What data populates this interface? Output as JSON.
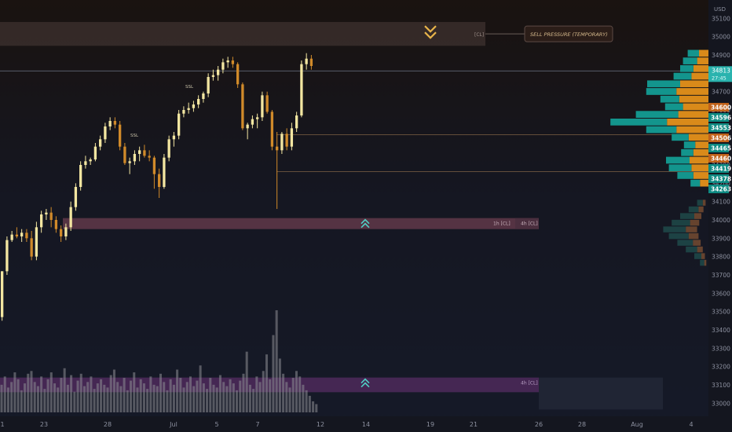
{
  "chart_data": {
    "type": "candlestick",
    "y_unit_label": "USD",
    "ylim": [
      32950,
      35200
    ],
    "y_ticks": [
      33000,
      33100,
      33200,
      33300,
      33400,
      33500,
      33600,
      33700,
      33800,
      33900,
      34000,
      34100,
      34200,
      34300,
      34400,
      34500,
      34600,
      34700,
      34800,
      34900,
      35000,
      35100
    ],
    "x_labels": [
      "1",
      "23",
      "28",
      "Jul",
      "5",
      "7",
      "12",
      "14",
      "19",
      "21",
      "26",
      "28",
      "Aug",
      "4"
    ],
    "candles": [
      {
        "o": 33470,
        "h": 33720,
        "l": 33450,
        "c": 33720
      },
      {
        "o": 33720,
        "h": 33910,
        "l": 33700,
        "c": 33890
      },
      {
        "o": 33890,
        "h": 33940,
        "l": 33880,
        "c": 33920
      },
      {
        "o": 33920,
        "h": 33960,
        "l": 33900,
        "c": 33910
      },
      {
        "o": 33910,
        "h": 33950,
        "l": 33880,
        "c": 33930
      },
      {
        "o": 33930,
        "h": 33950,
        "l": 33880,
        "c": 33900
      },
      {
        "o": 33900,
        "h": 33940,
        "l": 33780,
        "c": 33800
      },
      {
        "o": 33800,
        "h": 33990,
        "l": 33780,
        "c": 33960
      },
      {
        "o": 33960,
        "h": 34050,
        "l": 33930,
        "c": 34030
      },
      {
        "o": 34030,
        "h": 34060,
        "l": 34000,
        "c": 34040
      },
      {
        "o": 34040,
        "h": 34070,
        "l": 33960,
        "c": 34000
      },
      {
        "o": 34000,
        "h": 34020,
        "l": 33930,
        "c": 33950
      },
      {
        "o": 33950,
        "h": 33970,
        "l": 33880,
        "c": 33910
      },
      {
        "o": 33910,
        "h": 33980,
        "l": 33890,
        "c": 33960
      },
      {
        "o": 33960,
        "h": 34100,
        "l": 33940,
        "c": 34070
      },
      {
        "o": 34070,
        "h": 34200,
        "l": 34050,
        "c": 34180
      },
      {
        "o": 34180,
        "h": 34320,
        "l": 34160,
        "c": 34300
      },
      {
        "o": 34300,
        "h": 34350,
        "l": 34280,
        "c": 34320
      },
      {
        "o": 34320,
        "h": 34340,
        "l": 34300,
        "c": 34330
      },
      {
        "o": 34330,
        "h": 34420,
        "l": 34320,
        "c": 34400
      },
      {
        "o": 34400,
        "h": 34460,
        "l": 34380,
        "c": 34440
      },
      {
        "o": 34440,
        "h": 34530,
        "l": 34420,
        "c": 34510
      },
      {
        "o": 34510,
        "h": 34560,
        "l": 34490,
        "c": 34540
      },
      {
        "o": 34540,
        "h": 34560,
        "l": 34500,
        "c": 34520
      },
      {
        "o": 34520,
        "h": 34540,
        "l": 34380,
        "c": 34400
      },
      {
        "o": 34400,
        "h": 34420,
        "l": 34300,
        "c": 34310
      },
      {
        "o": 34310,
        "h": 34340,
        "l": 34250,
        "c": 34320
      },
      {
        "o": 34320,
        "h": 34380,
        "l": 34300,
        "c": 34360
      },
      {
        "o": 34360,
        "h": 34400,
        "l": 34320,
        "c": 34380
      },
      {
        "o": 34380,
        "h": 34410,
        "l": 34340,
        "c": 34350
      },
      {
        "o": 34350,
        "h": 34380,
        "l": 34320,
        "c": 34340
      },
      {
        "o": 34340,
        "h": 34350,
        "l": 34170,
        "c": 34250
      },
      {
        "o": 34250,
        "h": 34280,
        "l": 34120,
        "c": 34180
      },
      {
        "o": 34180,
        "h": 34360,
        "l": 34170,
        "c": 34340
      },
      {
        "o": 34340,
        "h": 34460,
        "l": 34320,
        "c": 34440
      },
      {
        "o": 34440,
        "h": 34480,
        "l": 34400,
        "c": 34460
      },
      {
        "o": 34460,
        "h": 34600,
        "l": 34440,
        "c": 34580
      },
      {
        "o": 34580,
        "h": 34620,
        "l": 34560,
        "c": 34600
      },
      {
        "o": 34600,
        "h": 34640,
        "l": 34580,
        "c": 34610
      },
      {
        "o": 34610,
        "h": 34650,
        "l": 34590,
        "c": 34630
      },
      {
        "o": 34630,
        "h": 34680,
        "l": 34610,
        "c": 34660
      },
      {
        "o": 34660,
        "h": 34700,
        "l": 34640,
        "c": 34690
      },
      {
        "o": 34690,
        "h": 34800,
        "l": 34670,
        "c": 34780
      },
      {
        "o": 34780,
        "h": 34820,
        "l": 34760,
        "c": 34790
      },
      {
        "o": 34790,
        "h": 34840,
        "l": 34760,
        "c": 34820
      },
      {
        "o": 34820,
        "h": 34880,
        "l": 34800,
        "c": 34860
      },
      {
        "o": 34860,
        "h": 34890,
        "l": 34830,
        "c": 34870
      },
      {
        "o": 34870,
        "h": 34890,
        "l": 34830,
        "c": 34850
      },
      {
        "o": 34850,
        "h": 34860,
        "l": 34720,
        "c": 34740
      },
      {
        "o": 34740,
        "h": 34750,
        "l": 34490,
        "c": 34500
      },
      {
        "o": 34500,
        "h": 34530,
        "l": 34440,
        "c": 34520
      },
      {
        "o": 34520,
        "h": 34570,
        "l": 34500,
        "c": 34550
      },
      {
        "o": 34550,
        "h": 34580,
        "l": 34500,
        "c": 34560
      },
      {
        "o": 34560,
        "h": 34700,
        "l": 34540,
        "c": 34680
      },
      {
        "o": 34680,
        "h": 34700,
        "l": 34580,
        "c": 34590
      },
      {
        "o": 34590,
        "h": 34600,
        "l": 34380,
        "c": 34400
      },
      {
        "o": 34400,
        "h": 34480,
        "l": 34060,
        "c": 34380
      },
      {
        "o": 34380,
        "h": 34480,
        "l": 34360,
        "c": 34470
      },
      {
        "o": 34470,
        "h": 34500,
        "l": 34380,
        "c": 34400
      },
      {
        "o": 34400,
        "h": 34530,
        "l": 34380,
        "c": 34500
      },
      {
        "o": 34500,
        "h": 34590,
        "l": 34480,
        "c": 34570
      },
      {
        "o": 34570,
        "h": 34870,
        "l": 34560,
        "c": 34850
      },
      {
        "o": 34850,
        "h": 34910,
        "l": 34820,
        "c": 34880
      },
      {
        "o": 34880,
        "h": 34900,
        "l": 34820,
        "c": 34840
      }
    ],
    "volume_values": [
      2.0,
      2.6,
      1.8,
      2.2,
      2.9,
      2.4,
      1.6,
      2.1,
      2.8,
      3.0,
      2.2,
      1.9,
      2.6,
      1.7,
      2.4,
      2.9,
      2.1,
      1.8,
      2.5,
      3.2,
      2.0,
      2.7,
      1.5,
      2.3,
      2.8,
      1.9,
      2.2,
      2.6,
      1.7,
      2.1,
      2.4,
      2.0,
      1.8,
      2.7,
      3.1,
      2.2,
      1.9,
      2.5,
      1.6,
      2.3,
      2.9,
      1.8,
      2.4,
      2.1,
      1.7,
      2.6,
      2.0,
      1.9,
      2.8,
      2.2,
      1.6,
      2.4,
      2.0,
      3.1,
      2.5,
      1.8,
      2.2,
      2.6,
      1.9,
      2.3,
      3.4,
      2.1,
      1.7,
      2.5,
      2.0,
      1.8,
      2.7,
      2.2,
      1.9,
      2.4,
      2.1,
      1.6,
      2.3,
      2.8,
      4.4,
      2.0,
      1.7,
      2.6,
      2.2,
      3.0,
      4.2,
      2.4,
      5.6,
      7.4,
      3.9,
      2.8,
      2.2,
      1.8,
      2.5,
      3.0,
      2.6,
      2.0,
      1.6,
      1.2,
      0.8,
      0.6
    ],
    "volume_profile_rows": [
      {
        "teal": 1.2,
        "orange": 1.0
      },
      {
        "teal": 1.5,
        "orange": 1.2
      },
      {
        "teal": 1.4,
        "orange": 1.6
      },
      {
        "teal": 1.9,
        "orange": 1.8
      },
      {
        "teal": 3.5,
        "orange": 3.0
      },
      {
        "teal": 3.2,
        "orange": 3.4
      },
      {
        "teal": 2.0,
        "orange": 3.1
      },
      {
        "teal": 1.9,
        "orange": 2.7
      },
      {
        "teal": 4.5,
        "orange": 3.2
      },
      {
        "teal": 6.0,
        "orange": 4.4
      },
      {
        "teal": 3.2,
        "orange": 3.4
      },
      {
        "teal": 1.8,
        "orange": 2.1
      },
      {
        "teal": 1.2,
        "orange": 1.4
      },
      {
        "teal": 1.3,
        "orange": 1.6
      },
      {
        "teal": 2.5,
        "orange": 2.0
      },
      {
        "teal": 2.4,
        "orange": 1.8
      },
      {
        "teal": 1.7,
        "orange": 1.6
      },
      {
        "teal": 1.0,
        "orange": 0.9
      }
    ],
    "zones": [
      {
        "label": "[CL]",
        "arrow": "down",
        "top": 35080,
        "bottom": 34950
      },
      {
        "label_left": "1h [CL]",
        "label_right": "4h [CL]",
        "arrow": "up",
        "top": 34010,
        "bottom": 33950
      },
      {
        "label_right": "4h [CL]",
        "arrow": "up",
        "top": 33140,
        "bottom": 33060
      }
    ],
    "annotation": "SELL PRESSURE (TEMPORARY)",
    "current_price": {
      "value": 34813,
      "sublabel": "27:45"
    },
    "h_lines": [
      34813,
      34465,
      34263
    ],
    "price_levels": [
      {
        "value": 34600,
        "color": "#c0621a"
      },
      {
        "value": 34596,
        "color": "#0e8a82"
      },
      {
        "value": 34553,
        "color": "#0e8a82"
      },
      {
        "value": 34506,
        "color": "#c0621a"
      },
      {
        "value": 34465,
        "color": "#0e8a82"
      },
      {
        "value": 34460,
        "color": "#c0621a"
      },
      {
        "value": 34419,
        "color": "#0e8a82"
      },
      {
        "value": 34378,
        "color": "#0e8a82"
      },
      {
        "value": 34263,
        "color": "#0e8a82"
      }
    ],
    "small_labels": [
      "SSL",
      "SSL"
    ],
    "colors": {
      "up": "#f3e6a1",
      "down": "#d08a2a",
      "teal": "#13958d",
      "orange": "#d98a1a",
      "zone_top": "#4a3c38",
      "zone_mid": "#6b3d4f",
      "zone_bottom": "#5a2d66",
      "current_price": "#2ab3ae"
    }
  }
}
